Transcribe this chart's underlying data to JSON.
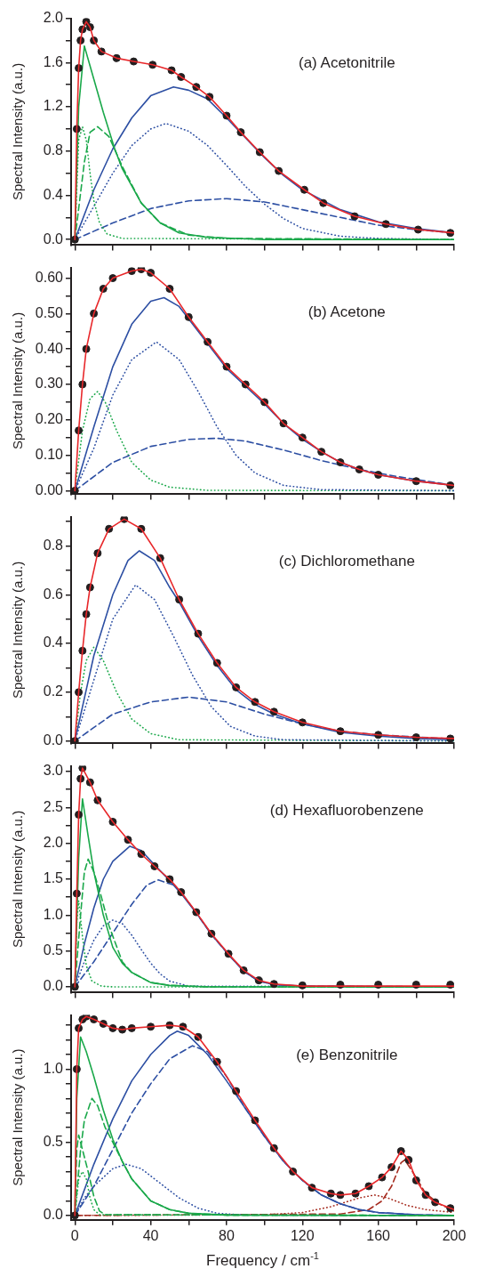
{
  "chart_data": [
    {
      "type": "line",
      "annotations": [
        "(a) Acetonitrile"
      ],
      "ylabel": "Spectral Intensity (a.u.)",
      "xlim": [
        -2,
        200
      ],
      "tick_labels": "y",
      "xticks": [
        0,
        {
          "value": 20,
          "label": null
        },
        40,
        {
          "value": 60,
          "label": null
        },
        80,
        {
          "value": 100,
          "label": null
        },
        120,
        {
          "value": 140,
          "label": null
        },
        160,
        {
          "value": 180,
          "label": null
        },
        200
      ],
      "ylim": [
        -0.05,
        2.0
      ],
      "yticks": [
        {
          "value": 0,
          "label": "0.0"
        },
        {
          "value": 0.2,
          "label": null
        },
        0.4,
        {
          "value": 0.6,
          "label": null
        },
        0.8,
        {
          "value": 1.0,
          "label": null
        },
        1.2,
        {
          "value": 1.4,
          "label": null
        },
        1.6,
        {
          "value": 1.8,
          "label": null
        },
        {
          "value": 2.0,
          "label": "2.0"
        }
      ],
      "series": [
        {
          "type": "line",
          "color": "#e8272a",
          "line_style": "solid",
          "x": [
            0,
            1,
            2,
            3,
            4,
            6,
            8,
            10,
            14,
            22,
            31,
            41,
            51,
            56,
            64,
            71,
            80,
            87.5,
            97.5,
            107.5,
            121,
            131,
            147.5,
            164,
            181,
            200
          ],
          "values": [
            0,
            1.0,
            1.55,
            1.8,
            1.9,
            1.97,
            1.92,
            1.8,
            1.7,
            1.64,
            1.61,
            1.58,
            1.53,
            1.47,
            1.38,
            1.29,
            1.12,
            0.97,
            0.79,
            0.62,
            0.45,
            0.33,
            0.21,
            0.14,
            0.09,
            0.06
          ]
        },
        {
          "type": "scatter",
          "color": "#231f20",
          "marker": "circle",
          "x": [
            0,
            1,
            2,
            3,
            4,
            6,
            8,
            10,
            14,
            22,
            31,
            41,
            51,
            56,
            64,
            71,
            80,
            87.5,
            97.5,
            107.5,
            121,
            131,
            147.5,
            164,
            181,
            198
          ],
          "values": [
            0,
            1.0,
            1.55,
            1.8,
            1.9,
            1.97,
            1.92,
            1.8,
            1.7,
            1.64,
            1.61,
            1.58,
            1.53,
            1.47,
            1.38,
            1.29,
            1.12,
            0.97,
            0.79,
            0.62,
            0.45,
            0.33,
            0.21,
            0.14,
            0.09,
            0.06
          ]
        },
        {
          "type": "line",
          "color": "#1aa84a",
          "line_style": "solid",
          "x": [
            0,
            2,
            5,
            10,
            15,
            21,
            25,
            35,
            45,
            55,
            70,
            100,
            200
          ],
          "values": [
            0,
            1.2,
            1.75,
            1.45,
            1.15,
            0.82,
            0.64,
            0.33,
            0.15,
            0.06,
            0.02,
            0,
            0
          ]
        },
        {
          "type": "line",
          "color": "#1aa84a",
          "line_style": "dashed",
          "x": [
            0,
            5,
            8,
            12,
            18,
            25,
            35,
            45,
            60,
            80,
            200
          ],
          "values": [
            0,
            0.7,
            0.97,
            1.02,
            0.93,
            0.66,
            0.33,
            0.15,
            0.04,
            0.01,
            0
          ]
        },
        {
          "type": "line",
          "color": "#1aa84a",
          "line_style": "dotted",
          "x": [
            0,
            2,
            4,
            6,
            8,
            10,
            13,
            17,
            25,
            200
          ],
          "values": [
            0,
            0.9,
            1.02,
            0.9,
            0.6,
            0.35,
            0.15,
            0.05,
            0.01,
            0
          ]
        },
        {
          "type": "line",
          "color": "#2d4fa3",
          "line_style": "solid",
          "x": [
            0,
            10,
            20,
            30,
            40,
            52,
            60,
            70,
            80,
            90,
            100,
            110,
            120,
            140,
            160,
            180,
            200
          ],
          "values": [
            0,
            0.45,
            0.82,
            1.1,
            1.3,
            1.38,
            1.35,
            1.27,
            1.1,
            0.92,
            0.74,
            0.58,
            0.45,
            0.27,
            0.16,
            0.1,
            0.06
          ]
        },
        {
          "type": "line",
          "color": "#2d4fa3",
          "line_style": "dotted",
          "x": [
            0,
            10,
            20,
            30,
            40,
            48,
            60,
            70,
            80,
            90,
            100,
            110,
            120,
            140,
            160,
            200
          ],
          "values": [
            0,
            0.3,
            0.6,
            0.85,
            1.0,
            1.05,
            0.98,
            0.85,
            0.67,
            0.48,
            0.32,
            0.19,
            0.1,
            0.03,
            0.01,
            0
          ]
        },
        {
          "type": "line",
          "color": "#2d4fa3",
          "line_style": "dashed",
          "x": [
            0,
            20,
            40,
            60,
            80,
            100,
            120,
            140,
            160,
            180,
            200
          ],
          "values": [
            0,
            0.15,
            0.28,
            0.35,
            0.37,
            0.34,
            0.27,
            0.2,
            0.13,
            0.09,
            0.06
          ]
        }
      ]
    },
    {
      "type": "line",
      "annotations": [
        "(b) Acetone"
      ],
      "ylabel": "Spectral Intensity (a.u.)",
      "xlim": [
        -2,
        200
      ],
      "tick_labels": "y",
      "xticks": [
        0,
        {
          "value": 20,
          "label": null
        },
        40,
        {
          "value": 60,
          "label": null
        },
        80,
        {
          "value": 100,
          "label": null
        },
        120,
        {
          "value": 140,
          "label": null
        },
        160,
        {
          "value": 180,
          "label": null
        },
        200
      ],
      "ylim": [
        -0.01,
        0.63
      ],
      "yticks": [
        {
          "value": 0,
          "label": "0.00"
        },
        {
          "value": 0.05,
          "label": null
        },
        {
          "value": 0.1,
          "label": "0.10"
        },
        {
          "value": 0.15,
          "label": null
        },
        {
          "value": 0.2,
          "label": "0.20"
        },
        {
          "value": 0.25,
          "label": null
        },
        {
          "value": 0.3,
          "label": "0.30"
        },
        {
          "value": 0.35,
          "label": null
        },
        {
          "value": 0.4,
          "label": "0.40"
        },
        {
          "value": 0.45,
          "label": null
        },
        {
          "value": 0.5,
          "label": "0.50"
        },
        {
          "value": 0.55,
          "label": null
        },
        {
          "value": 0.6,
          "label": "0.60"
        }
      ],
      "series": [
        {
          "type": "line",
          "color": "#e8272a",
          "line_style": "solid",
          "x": [
            0,
            2,
            4,
            6,
            10,
            15,
            20,
            30,
            35,
            40,
            50,
            60,
            70,
            80,
            90,
            100,
            110,
            120,
            130,
            140,
            150,
            160,
            180,
            200
          ],
          "values": [
            0,
            0.17,
            0.3,
            0.4,
            0.5,
            0.57,
            0.6,
            0.62,
            0.625,
            0.615,
            0.57,
            0.49,
            0.42,
            0.35,
            0.3,
            0.25,
            0.19,
            0.15,
            0.11,
            0.08,
            0.06,
            0.045,
            0.027,
            0.015
          ]
        },
        {
          "type": "scatter",
          "color": "#231f20",
          "marker": "circle",
          "x": [
            0,
            2,
            4,
            6,
            10,
            15,
            20,
            30,
            35,
            40,
            50,
            60,
            70,
            80,
            90,
            100,
            110,
            120,
            130,
            140,
            150,
            160,
            180,
            198
          ],
          "values": [
            0,
            0.17,
            0.3,
            0.4,
            0.5,
            0.57,
            0.6,
            0.62,
            0.625,
            0.615,
            0.57,
            0.49,
            0.42,
            0.35,
            0.3,
            0.25,
            0.19,
            0.15,
            0.11,
            0.08,
            0.06,
            0.045,
            0.027,
            0.015
          ]
        },
        {
          "type": "line",
          "color": "#2d4fa3",
          "line_style": "solid",
          "x": [
            0,
            10,
            20,
            30,
            40,
            47,
            55,
            65,
            75,
            80,
            90,
            100,
            110,
            120,
            130,
            140,
            150,
            160,
            180,
            200
          ],
          "values": [
            0,
            0.18,
            0.35,
            0.47,
            0.535,
            0.545,
            0.52,
            0.45,
            0.38,
            0.345,
            0.295,
            0.245,
            0.19,
            0.145,
            0.11,
            0.08,
            0.06,
            0.045,
            0.027,
            0.015
          ]
        },
        {
          "type": "line",
          "color": "#2d4fa3",
          "line_style": "dotted",
          "x": [
            0,
            10,
            20,
            30,
            43,
            55,
            65,
            75,
            85,
            95,
            110,
            130,
            200
          ],
          "values": [
            0,
            0.12,
            0.27,
            0.37,
            0.42,
            0.37,
            0.28,
            0.18,
            0.1,
            0.05,
            0.015,
            0.003,
            0
          ]
        },
        {
          "type": "line",
          "color": "#2d4fa3",
          "line_style": "dashed",
          "x": [
            0,
            20,
            40,
            60,
            75,
            90,
            110,
            130,
            150,
            170,
            200
          ],
          "values": [
            0,
            0.08,
            0.125,
            0.145,
            0.148,
            0.14,
            0.115,
            0.085,
            0.06,
            0.04,
            0.015
          ]
        },
        {
          "type": "line",
          "color": "#1aa84a",
          "line_style": "dotted",
          "x": [
            0,
            4,
            8,
            12,
            16,
            22,
            30,
            40,
            50,
            70,
            200
          ],
          "values": [
            0,
            0.17,
            0.26,
            0.28,
            0.25,
            0.17,
            0.08,
            0.03,
            0.01,
            0.001,
            0
          ]
        }
      ]
    },
    {
      "type": "line",
      "annotations": [
        "(c) Dichloromethane"
      ],
      "ylabel": "Spectral Intensity (a.u.)",
      "xlim": [
        -2,
        200
      ],
      "tick_labels": "y",
      "xticks": [
        0,
        {
          "value": 20,
          "label": null
        },
        40,
        {
          "value": 60,
          "label": null
        },
        80,
        {
          "value": 100,
          "label": null
        },
        120,
        {
          "value": 140,
          "label": null
        },
        160,
        {
          "value": 180,
          "label": null
        },
        200
      ],
      "ylim": [
        -0.01,
        0.92
      ],
      "yticks": [
        {
          "value": 0,
          "label": "0.0"
        },
        {
          "value": 0.1,
          "label": null
        },
        0.2,
        {
          "value": 0.3,
          "label": null
        },
        0.4,
        {
          "value": 0.5,
          "label": null
        },
        0.6,
        {
          "value": 0.7,
          "label": null
        },
        0.8,
        {
          "value": 0.9,
          "label": null
        }
      ],
      "series": [
        {
          "type": "line",
          "color": "#e8272a",
          "line_style": "solid",
          "x": [
            0,
            2,
            4,
            6,
            8,
            12,
            18,
            26,
            35,
            45,
            55,
            65,
            75,
            85,
            95,
            105,
            120,
            140,
            160,
            180,
            200
          ],
          "values": [
            0,
            0.2,
            0.37,
            0.52,
            0.63,
            0.77,
            0.87,
            0.91,
            0.87,
            0.75,
            0.58,
            0.44,
            0.32,
            0.22,
            0.16,
            0.12,
            0.076,
            0.04,
            0.025,
            0.015,
            0.01
          ]
        },
        {
          "type": "scatter",
          "color": "#231f20",
          "marker": "circle",
          "x": [
            0,
            2,
            4,
            6,
            8,
            12,
            18,
            26,
            35,
            45,
            55,
            65,
            75,
            85,
            95,
            105,
            120,
            140,
            160,
            180,
            198
          ],
          "values": [
            0,
            0.2,
            0.37,
            0.52,
            0.63,
            0.77,
            0.87,
            0.91,
            0.87,
            0.75,
            0.58,
            0.44,
            0.32,
            0.22,
            0.16,
            0.12,
            0.076,
            0.04,
            0.025,
            0.015,
            0.01
          ]
        },
        {
          "type": "line",
          "color": "#2d4fa3",
          "line_style": "solid",
          "x": [
            0,
            10,
            20,
            28,
            34,
            42,
            50,
            55,
            65,
            75,
            85,
            95,
            105,
            120,
            140,
            160,
            180,
            200
          ],
          "values": [
            0,
            0.35,
            0.6,
            0.74,
            0.78,
            0.74,
            0.63,
            0.57,
            0.43,
            0.31,
            0.21,
            0.15,
            0.11,
            0.07,
            0.035,
            0.02,
            0.01,
            0.005
          ]
        },
        {
          "type": "line",
          "color": "#2d4fa3",
          "line_style": "dotted",
          "x": [
            0,
            10,
            20,
            32,
            42,
            52,
            62,
            72,
            82,
            95,
            110,
            200
          ],
          "values": [
            0,
            0.25,
            0.5,
            0.64,
            0.58,
            0.43,
            0.27,
            0.14,
            0.06,
            0.02,
            0.005,
            0
          ]
        },
        {
          "type": "line",
          "color": "#2d4fa3",
          "line_style": "dashed",
          "x": [
            0,
            20,
            40,
            60,
            80,
            100,
            120,
            140,
            160,
            200
          ],
          "values": [
            0,
            0.11,
            0.16,
            0.18,
            0.16,
            0.11,
            0.07,
            0.04,
            0.025,
            0.008
          ]
        },
        {
          "type": "line",
          "color": "#1aa84a",
          "line_style": "dotted",
          "x": [
            0,
            3,
            6,
            10,
            15,
            22,
            30,
            40,
            55,
            200
          ],
          "values": [
            0,
            0.2,
            0.33,
            0.385,
            0.33,
            0.2,
            0.09,
            0.03,
            0.005,
            0
          ]
        }
      ]
    },
    {
      "type": "line",
      "annotations": [
        "(d) Hexafluorobenzene"
      ],
      "ylabel": "Spectral Intensity (a.u.)",
      "xlim": [
        -2,
        200
      ],
      "tick_labels": "y",
      "xticks": [
        0,
        {
          "value": 20,
          "label": null
        },
        40,
        {
          "value": 60,
          "label": null
        },
        80,
        {
          "value": 100,
          "label": null
        },
        120,
        {
          "value": 140,
          "label": null
        },
        160,
        {
          "value": 180,
          "label": null
        },
        200
      ],
      "ylim": [
        -0.08,
        3.08
      ],
      "yticks": [
        {
          "value": 0,
          "label": "0.0"
        },
        {
          "value": 0.25,
          "label": null
        },
        0.5,
        {
          "value": 0.75,
          "label": null
        },
        {
          "value": 1.0,
          "label": "1.0"
        },
        {
          "value": 1.25,
          "label": null
        },
        1.5,
        {
          "value": 1.75,
          "label": null
        },
        {
          "value": 2.0,
          "label": "2.0"
        },
        {
          "value": 2.25,
          "label": null
        },
        2.5,
        {
          "value": 2.75,
          "label": null
        },
        {
          "value": 3.0,
          "label": "3.0"
        }
      ],
      "series": [
        {
          "type": "line",
          "color": "#e8272a",
          "line_style": "solid",
          "x": [
            0,
            1,
            2,
            3,
            4,
            8,
            12,
            20,
            28,
            35,
            42,
            50,
            56,
            64,
            72,
            81,
            89,
            97,
            105,
            120,
            200
          ],
          "values": [
            0,
            1.3,
            2.4,
            2.9,
            3.05,
            2.85,
            2.6,
            2.3,
            2.05,
            1.85,
            1.68,
            1.5,
            1.32,
            1.04,
            0.74,
            0.46,
            0.23,
            0.09,
            0.04,
            0.01,
            0.01
          ]
        },
        {
          "type": "scatter",
          "color": "#231f20",
          "marker": "circle",
          "x": [
            0,
            1,
            2,
            3,
            4,
            8,
            12,
            20,
            28,
            35,
            42,
            50,
            56,
            64,
            72,
            81,
            89,
            97,
            105,
            120,
            140,
            160,
            180,
            198
          ],
          "values": [
            0,
            1.3,
            2.4,
            2.9,
            3.05,
            2.85,
            2.6,
            2.3,
            2.05,
            1.85,
            1.68,
            1.5,
            1.32,
            1.04,
            0.74,
            0.46,
            0.23,
            0.09,
            0.04,
            0.02,
            0.03,
            0.03,
            0.03,
            0.03
          ]
        },
        {
          "type": "line",
          "color": "#1aa84a",
          "line_style": "solid",
          "x": [
            0,
            2,
            4,
            7,
            10,
            15,
            20,
            25,
            30,
            40,
            50,
            70,
            200
          ],
          "values": [
            0,
            1.8,
            2.62,
            2.1,
            1.6,
            1.0,
            0.55,
            0.33,
            0.2,
            0.06,
            0.02,
            0,
            0
          ]
        },
        {
          "type": "line",
          "color": "#1aa84a",
          "line_style": "dashed",
          "x": [
            0,
            3,
            5,
            7,
            10,
            14,
            18,
            25,
            30,
            40,
            50,
            70,
            200
          ],
          "values": [
            0,
            1.0,
            1.6,
            1.78,
            1.6,
            1.25,
            0.85,
            0.35,
            0.2,
            0.06,
            0.02,
            0,
            0
          ]
        },
        {
          "type": "line",
          "color": "#1aa84a",
          "line_style": "dotted",
          "x": [
            0,
            1,
            2,
            4,
            6,
            9,
            14,
            20,
            200
          ],
          "values": [
            0,
            0.9,
            1.2,
            0.7,
            0.3,
            0.08,
            0.01,
            0,
            0
          ]
        },
        {
          "type": "line",
          "color": "#2d4fa3",
          "line_style": "solid",
          "x": [
            0,
            5,
            10,
            15,
            20,
            29,
            35,
            42,
            50,
            56,
            64,
            72,
            81,
            89,
            97,
            105,
            120,
            200
          ],
          "values": [
            0,
            0.6,
            1.1,
            1.5,
            1.75,
            1.96,
            1.9,
            1.7,
            1.48,
            1.3,
            1.03,
            0.73,
            0.45,
            0.22,
            0.08,
            0.03,
            0.01,
            0
          ]
        },
        {
          "type": "line",
          "color": "#2d4fa3",
          "line_style": "dashed",
          "x": [
            0,
            10,
            20,
            30,
            38,
            44,
            52,
            56,
            64,
            72,
            81,
            89,
            97,
            105,
            120,
            200
          ],
          "values": [
            0,
            0.35,
            0.75,
            1.15,
            1.42,
            1.49,
            1.42,
            1.32,
            1.03,
            0.73,
            0.45,
            0.22,
            0.08,
            0.03,
            0.01,
            0
          ]
        },
        {
          "type": "line",
          "color": "#2d4fa3",
          "line_style": "dotted",
          "x": [
            0,
            5,
            10,
            15,
            20,
            25,
            30,
            35,
            40,
            45,
            50,
            60,
            200
          ],
          "values": [
            0,
            0.35,
            0.65,
            0.85,
            0.93,
            0.88,
            0.72,
            0.52,
            0.33,
            0.18,
            0.08,
            0.01,
            0
          ]
        }
      ]
    },
    {
      "type": "line",
      "annotations": [
        "(e) Benzonitrile"
      ],
      "ylabel": "Spectral Intensity (a.u.)",
      "xlabel": "Frequency / cm$^{-1}$",
      "xlim": [
        -2,
        200
      ],
      "xticks": [
        0,
        {
          "value": 20,
          "label": null
        },
        40,
        {
          "value": 60,
          "label": null
        },
        80,
        {
          "value": 100,
          "label": null
        },
        120,
        {
          "value": 140,
          "label": null
        },
        160,
        {
          "value": 180,
          "label": null
        },
        200
      ],
      "ylim": [
        -0.03,
        1.37
      ],
      "yticks": [
        {
          "value": 0,
          "label": "0.0"
        },
        {
          "value": 0.1,
          "label": null
        },
        {
          "value": 0.2,
          "label": null
        },
        {
          "value": 0.3,
          "label": null
        },
        {
          "value": 0.4,
          "label": null
        },
        0.5,
        {
          "value": 0.6,
          "label": null
        },
        {
          "value": 0.7,
          "label": null
        },
        {
          "value": 0.8,
          "label": null
        },
        {
          "value": 0.9,
          "label": null
        },
        {
          "value": 1.0,
          "label": "1.0"
        },
        {
          "value": 1.1,
          "label": null
        },
        {
          "value": 1.2,
          "label": null
        },
        {
          "value": 1.3,
          "label": null
        }
      ],
      "series": [
        {
          "type": "line",
          "color": "#e8272a",
          "line_style": "solid",
          "x": [
            0,
            1,
            2,
            4,
            6,
            10,
            15,
            20,
            25,
            30,
            40,
            50,
            57,
            65,
            75,
            85,
            95,
            105,
            115,
            125,
            135,
            140,
            148,
            155,
            162,
            167,
            172,
            176,
            180,
            185,
            190,
            200
          ],
          "values": [
            0,
            1.0,
            1.28,
            1.34,
            1.36,
            1.34,
            1.31,
            1.28,
            1.27,
            1.28,
            1.29,
            1.3,
            1.29,
            1.22,
            1.05,
            0.85,
            0.65,
            0.46,
            0.3,
            0.19,
            0.15,
            0.14,
            0.15,
            0.2,
            0.26,
            0.33,
            0.44,
            0.38,
            0.24,
            0.14,
            0.09,
            0.04
          ]
        },
        {
          "type": "scatter",
          "color": "#231f20",
          "marker": "circle",
          "x": [
            0,
            1,
            2,
            4,
            6,
            10,
            15,
            20,
            25,
            30,
            40,
            50,
            57,
            65,
            75,
            85,
            95,
            105,
            115,
            125,
            135,
            140,
            148,
            155,
            162,
            167,
            172,
            176,
            180,
            185,
            190,
            198
          ],
          "values": [
            0,
            1.0,
            1.28,
            1.34,
            1.36,
            1.34,
            1.31,
            1.28,
            1.27,
            1.28,
            1.29,
            1.3,
            1.29,
            1.22,
            1.05,
            0.85,
            0.65,
            0.46,
            0.3,
            0.19,
            0.15,
            0.14,
            0.15,
            0.2,
            0.26,
            0.33,
            0.44,
            0.38,
            0.24,
            0.14,
            0.09,
            0.05
          ]
        },
        {
          "type": "line",
          "color": "#1aa84a",
          "line_style": "solid",
          "x": [
            0,
            1,
            3,
            6,
            10,
            15,
            20,
            25,
            30,
            40,
            50,
            60,
            80,
            200
          ],
          "values": [
            0,
            0.8,
            1.22,
            1.12,
            0.95,
            0.72,
            0.52,
            0.37,
            0.25,
            0.1,
            0.04,
            0.015,
            0.003,
            0
          ]
        },
        {
          "type": "line",
          "color": "#1aa84a",
          "line_style": "dashed",
          "x": [
            0,
            3,
            5,
            9,
            12,
            16,
            20,
            25,
            30,
            40,
            50,
            60,
            80,
            200
          ],
          "values": [
            0,
            0.45,
            0.65,
            0.8,
            0.75,
            0.6,
            0.5,
            0.37,
            0.25,
            0.1,
            0.04,
            0.015,
            0.003,
            0
          ]
        },
        {
          "type": "line",
          "color": "#1aa84a",
          "line_style": "dashed",
          "x": [
            0,
            1,
            2,
            4,
            7,
            10,
            13,
            16,
            200
          ],
          "values": [
            0,
            0.45,
            0.55,
            0.45,
            0.3,
            0.13,
            0.03,
            0.005,
            0
          ]
        },
        {
          "type": "line",
          "color": "#1aa84a",
          "line_style": "dotted",
          "x": [
            0,
            2,
            4,
            6,
            8,
            10,
            13,
            200
          ],
          "values": [
            0,
            0.25,
            0.3,
            0.25,
            0.12,
            0.04,
            0.005,
            0
          ]
        },
        {
          "type": "line",
          "color": "#2d4fa3",
          "line_style": "solid",
          "x": [
            0,
            10,
            20,
            30,
            40,
            50,
            54,
            60,
            70,
            80,
            90,
            100,
            110,
            120,
            130,
            140,
            150,
            160,
            180,
            200
          ],
          "values": [
            0,
            0.35,
            0.66,
            0.92,
            1.1,
            1.23,
            1.26,
            1.23,
            1.1,
            0.92,
            0.73,
            0.54,
            0.37,
            0.24,
            0.14,
            0.08,
            0.04,
            0.02,
            0.005,
            0
          ]
        },
        {
          "type": "line",
          "color": "#2d4fa3",
          "line_style": "dashed",
          "x": [
            0,
            10,
            20,
            30,
            40,
            50,
            62,
            70,
            80,
            90,
            100,
            110,
            120,
            130,
            140,
            150,
            160,
            180,
            200
          ],
          "values": [
            0,
            0.2,
            0.45,
            0.7,
            0.9,
            1.07,
            1.16,
            1.12,
            0.95,
            0.73,
            0.54,
            0.37,
            0.24,
            0.14,
            0.08,
            0.04,
            0.02,
            0.005,
            0
          ]
        },
        {
          "type": "line",
          "color": "#2d4fa3",
          "line_style": "dotted",
          "x": [
            0,
            5,
            10,
            20,
            27,
            35,
            45,
            55,
            65,
            75,
            90,
            200
          ],
          "values": [
            0,
            0.12,
            0.2,
            0.32,
            0.35,
            0.32,
            0.22,
            0.12,
            0.05,
            0.015,
            0.002,
            0
          ]
        },
        {
          "type": "line",
          "color": "#a52a1e",
          "line_style": "dotted",
          "x": [
            0,
            100,
            120,
            135,
            150,
            158,
            165,
            175,
            185,
            200
          ],
          "values": [
            0,
            0.005,
            0.02,
            0.06,
            0.12,
            0.14,
            0.12,
            0.07,
            0.04,
            0.02
          ]
        },
        {
          "type": "line",
          "color": "#a52a1e",
          "line_style": "dashed",
          "x": [
            0,
            140,
            155,
            162,
            167,
            172,
            174,
            178,
            185,
            192,
            200
          ],
          "values": [
            0,
            0.01,
            0.04,
            0.1,
            0.2,
            0.36,
            0.38,
            0.3,
            0.15,
            0.08,
            0.03
          ]
        }
      ]
    }
  ]
}
